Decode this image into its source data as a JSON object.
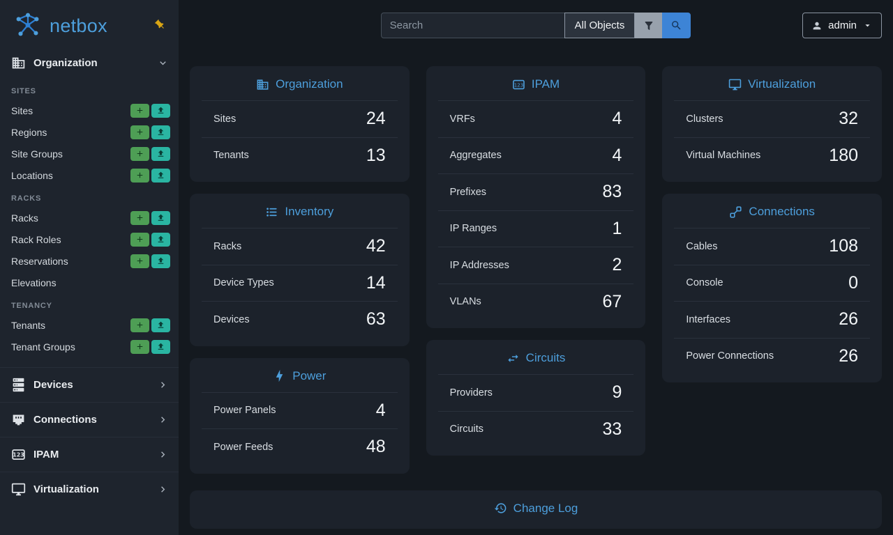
{
  "brand": {
    "name": "netbox"
  },
  "icons": {
    "logo": "logo",
    "pin": "pin",
    "plus": "plus",
    "import": "upload",
    "chevron_down": "chevron-down",
    "chevron_right": "chevron-right",
    "filter": "filter",
    "search": "magnify",
    "user": "account",
    "caret": "menu-down"
  },
  "topbar": {
    "search": {
      "placeholder": "Search"
    },
    "scope_button_label": "All Objects",
    "user_menu_label": "admin"
  },
  "sidebar": {
    "expanded_group": {
      "label": "Organization",
      "icon": "building"
    },
    "sections": [
      {
        "title": "SITES",
        "items": [
          {
            "label": "Sites"
          },
          {
            "label": "Regions"
          },
          {
            "label": "Site Groups"
          },
          {
            "label": "Locations"
          }
        ]
      },
      {
        "title": "RACKS",
        "items": [
          {
            "label": "Racks"
          },
          {
            "label": "Rack Roles"
          },
          {
            "label": "Reservations"
          },
          {
            "label": "Elevations"
          }
        ]
      },
      {
        "title": "TENANCY",
        "items": [
          {
            "label": "Tenants"
          },
          {
            "label": "Tenant Groups"
          }
        ]
      }
    ],
    "collapsed_groups": [
      {
        "label": "Devices",
        "icon": "server"
      },
      {
        "label": "Connections",
        "icon": "ethernet"
      },
      {
        "label": "IPAM",
        "icon": "counter"
      },
      {
        "label": "Virtualization",
        "icon": "monitor"
      }
    ]
  },
  "cards": {
    "organization": {
      "title": "Organization",
      "icon": "building",
      "rows": [
        {
          "label": "Sites",
          "value": 24
        },
        {
          "label": "Tenants",
          "value": 13
        }
      ]
    },
    "inventory": {
      "title": "Inventory",
      "icon": "list",
      "rows": [
        {
          "label": "Racks",
          "value": 42
        },
        {
          "label": "Device Types",
          "value": 14
        },
        {
          "label": "Devices",
          "value": 63
        }
      ]
    },
    "power": {
      "title": "Power",
      "icon": "lightning",
      "rows": [
        {
          "label": "Power Panels",
          "value": 4
        },
        {
          "label": "Power Feeds",
          "value": 48
        }
      ]
    },
    "ipam": {
      "title": "IPAM",
      "icon": "counter",
      "rows": [
        {
          "label": "VRFs",
          "value": 4
        },
        {
          "label": "Aggregates",
          "value": 4
        },
        {
          "label": "Prefixes",
          "value": 83
        },
        {
          "label": "IP Ranges",
          "value": 1
        },
        {
          "label": "IP Addresses",
          "value": 2
        },
        {
          "label": "VLANs",
          "value": 67
        }
      ]
    },
    "circuits": {
      "title": "Circuits",
      "icon": "swap",
      "rows": [
        {
          "label": "Providers",
          "value": 9
        },
        {
          "label": "Circuits",
          "value": 33
        }
      ]
    },
    "virtualization": {
      "title": "Virtualization",
      "icon": "monitor",
      "rows": [
        {
          "label": "Clusters",
          "value": 32
        },
        {
          "label": "Virtual Machines",
          "value": 180
        }
      ]
    },
    "connections": {
      "title": "Connections",
      "icon": "cables",
      "rows": [
        {
          "label": "Cables",
          "value": 108
        },
        {
          "label": "Console",
          "value": 0
        },
        {
          "label": "Interfaces",
          "value": 26
        },
        {
          "label": "Power Connections",
          "value": 26
        }
      ]
    },
    "changelog": {
      "title": "Change Log",
      "icon": "history"
    }
  },
  "colors": {
    "accent_blue": "#4d9fdc",
    "add_button_green": "#4e9e55",
    "import_button_teal": "#2ab5a2",
    "search_button_blue": "#3d84d6",
    "pin_gold": "#d9a514",
    "sidebar_bg": "#1e242d",
    "content_bg": "#14191f",
    "card_bg": "#1c222b"
  }
}
